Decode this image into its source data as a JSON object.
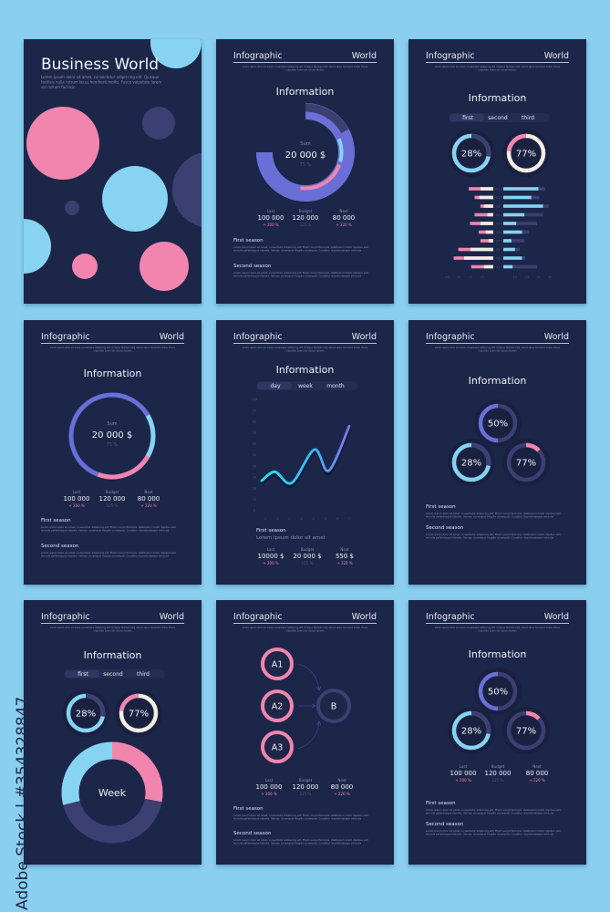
{
  "colors": {
    "background": "#8acff0",
    "card": "#1f2748",
    "pink": "#f285ae",
    "cyan": "#87d3f2",
    "dark_purple": "#3c3f72",
    "periwinkle": "#6a6fd8",
    "cream": "#f1eee4",
    "muted_text": "#8a90b0"
  },
  "watermark": "Adobe Stock | #354328847",
  "cover": {
    "title": "Business World",
    "text": [
      "Lorem ipsum dolor sit amet, consectetur adipiscing elit. Quisque",
      "facilisis nulla rutrum lacus hendrerit mollis. Fusce vulputate lorem",
      "vel rutrum facilisis"
    ]
  },
  "header": {
    "left": "Infographic",
    "right": "World",
    "subtext": [
      "Lorem ipsum dolor sit amet, consectetur adipiscing elit. Quisque facilisis nulla rutrum lacus hendrerit mollis. Fusce",
      "vulputate lorem vel rutrum facilisis"
    ]
  },
  "heading": "Information",
  "stats": [
    {
      "label": "Last",
      "value": "100 000",
      "change": "+ 200 %"
    },
    {
      "label": "Budget",
      "value": "120 000",
      "change": "125 %"
    },
    {
      "label": "Next",
      "value": "80 000",
      "change": "+ 220 %"
    }
  ],
  "seasons": [
    {
      "title": "First season",
      "text": [
        "Lorem ipsum dolor sit amet, consectetur adipiscing elit. Etiam vel porta turpis. Vestibulum lorem dapibus sem",
        "et nulla pellentesque lobortis. Aenean consequat fringilla consequat. Curabitur ut pellentesque vehicula"
      ]
    },
    {
      "title": "Second season",
      "text": [
        "Lorem ipsum dolor sit amet, consectetur adipiscing elit. Etiam vel porta turpis. Vestibulum lorem dapibus sem",
        "et nulla pellentesque lobortis. Aenean consequat fringilla consequat. Curabitur ut pellentesque vehicula"
      ]
    }
  ],
  "sum": {
    "label": "Sum",
    "value": "20 000 $",
    "percent": "75 %"
  },
  "tabs_season": [
    "first",
    "second",
    "third"
  ],
  "tabs_period": [
    "day",
    "week",
    "month"
  ],
  "donuts": {
    "d50": {
      "label": "50%",
      "value": 50
    },
    "d28": {
      "label": "28%",
      "value": 28
    },
    "d77": {
      "label": "77%",
      "value": 77
    }
  },
  "chart_data": [
    {
      "type": "bar",
      "orientation": "horizontal-diverging",
      "categories": [
        "01",
        "02",
        "03",
        "04",
        "05",
        "06",
        "07",
        "08",
        "09",
        "10"
      ],
      "left": {
        "ticks": [
          "-40",
          "-30",
          "-20",
          "-10"
        ],
        "totals": [
          21,
          16,
          11,
          16,
          20,
          12.5,
          11,
          30,
          34,
          19
        ],
        "inner": [
          11,
          12,
          8,
          5,
          11,
          6.5,
          4,
          19.5,
          25,
          8
        ]
      },
      "right": {
        "ticks": [
          "10",
          "20",
          "30",
          "40"
        ],
        "totals": [
          36,
          31,
          39,
          34,
          29,
          22,
          18,
          14,
          19,
          29
        ],
        "inner": [
          30,
          24,
          34,
          18,
          11,
          16,
          7,
          10,
          16,
          8
        ]
      }
    },
    {
      "type": "line",
      "x_ticks": [
        "0",
        "1",
        "2",
        "3",
        "4",
        "5",
        "6",
        "7"
      ],
      "y_ticks": [
        "0",
        "10",
        "20",
        "30",
        "40",
        "50",
        "60",
        "70",
        "80",
        "90",
        "100"
      ],
      "ylim": [
        0,
        100
      ],
      "xlim": [
        0,
        7
      ],
      "points": [
        [
          -0.3,
          27
        ],
        [
          0.8,
          35
        ],
        [
          2.2,
          25
        ],
        [
          4.1,
          55
        ],
        [
          5.3,
          36
        ],
        [
          7,
          76
        ]
      ]
    },
    {
      "type": "pie",
      "label": "Week",
      "segments": [
        {
          "value": 28,
          "color": "#f285ae"
        },
        {
          "value": 43,
          "color": "#3c3f72"
        },
        {
          "value": 29,
          "color": "#87d3f2"
        }
      ]
    }
  ],
  "line_card": {
    "season": "First season",
    "subtitle": "Lorem ipsum dolor sit amet",
    "stats": [
      {
        "label": "Last",
        "value": "10000 $",
        "change": "+ 200 %"
      },
      {
        "label": "Budget",
        "value": "20 000 $",
        "change": "125 %"
      },
      {
        "label": "Next",
        "value": "550 $",
        "change": "+ 220 %"
      }
    ]
  },
  "flow": {
    "sources": [
      "A1",
      "A2",
      "A3"
    ],
    "target": "B"
  }
}
